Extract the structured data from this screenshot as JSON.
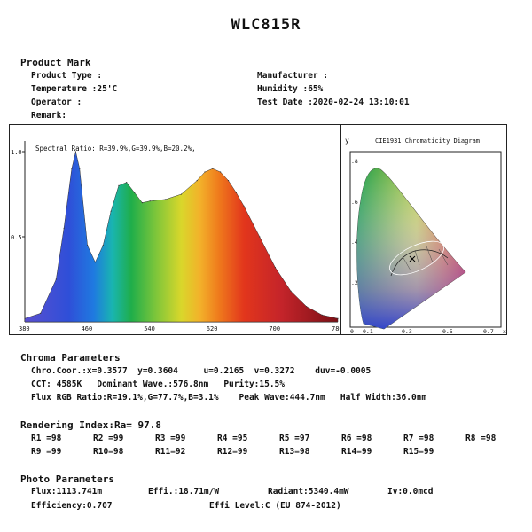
{
  "title": "WLC815R",
  "product": {
    "heading": "Product Mark",
    "product_type": "Product Type :",
    "manufacturer": "Manufacturer :",
    "temperature": "Temperature :25'C",
    "humidity": "Humidity :65%",
    "operator": "Operator :",
    "test_date": "Test Date :2020-02-24 13:10:01",
    "remark": "Remark:"
  },
  "spectrum": {
    "ratio_text": "Spectral Ratio:  R=39.9%,G=39.9%,B=20.2%,",
    "y_ticks": [
      "1.0",
      "0.5"
    ],
    "x_ticks": [
      "380",
      "460",
      "540",
      "620",
      "700",
      "780"
    ]
  },
  "cie": {
    "y_label": "y",
    "title": "CIE1931 Chromaticity Diagram",
    "y_ticks": [
      ".8",
      ".6",
      ".4",
      ".2"
    ],
    "x_ticks": [
      "0",
      "0.1",
      "0.3",
      "0.5",
      "0.7",
      "x"
    ]
  },
  "chart_data": {
    "type": "area",
    "xlim": [
      380,
      780
    ],
    "ylim": [
      0,
      1.0
    ],
    "x": [
      380,
      400,
      420,
      430,
      440,
      445,
      450,
      460,
      470,
      480,
      490,
      500,
      510,
      520,
      530,
      540,
      560,
      580,
      600,
      610,
      620,
      630,
      640,
      650,
      660,
      680,
      700,
      720,
      740,
      760,
      780
    ],
    "values": [
      0.02,
      0.05,
      0.25,
      0.55,
      0.9,
      1.0,
      0.9,
      0.45,
      0.35,
      0.45,
      0.65,
      0.8,
      0.82,
      0.76,
      0.7,
      0.71,
      0.72,
      0.75,
      0.83,
      0.88,
      0.9,
      0.88,
      0.83,
      0.76,
      0.68,
      0.5,
      0.32,
      0.18,
      0.09,
      0.04,
      0.02
    ]
  },
  "chroma": {
    "heading": "Chroma Parameters",
    "line1": "Chro.Coor.:x=0.3577  y=0.3604     u=0.2165  v=0.3272    duv=-0.0005",
    "line2": "CCT: 4585K   Dominant Wave.:576.8nm   Purity:15.5%",
    "line3": "Flux RGB Ratio:R=19.1%,G=77.7%,B=3.1%    Peak Wave:444.7nm   Half Width:36.0nm"
  },
  "rendering": {
    "heading": "Rendering Index:Ra= 97.8",
    "row1": [
      "R1 =98",
      "R2 =99",
      "R3 =99",
      "R4 =95",
      "R5 =97",
      "R6 =98",
      "R7 =98",
      "R8 =98"
    ],
    "row2": [
      "R9 =99",
      "R10=98",
      "R11=92",
      "R12=99",
      "R13=98",
      "R14=99",
      "R15=99"
    ]
  },
  "photo": {
    "heading": "Photo Parameters",
    "flux": "Flux:1113.741m",
    "effi": "Effi.:18.71m/W",
    "radiant": "Radiant:5340.4mW",
    "iv": "Iv:0.0mcd",
    "efficiency": "Efficiency:0.707",
    "effi_level": "Effi Level:C (EU 874-2012)"
  }
}
